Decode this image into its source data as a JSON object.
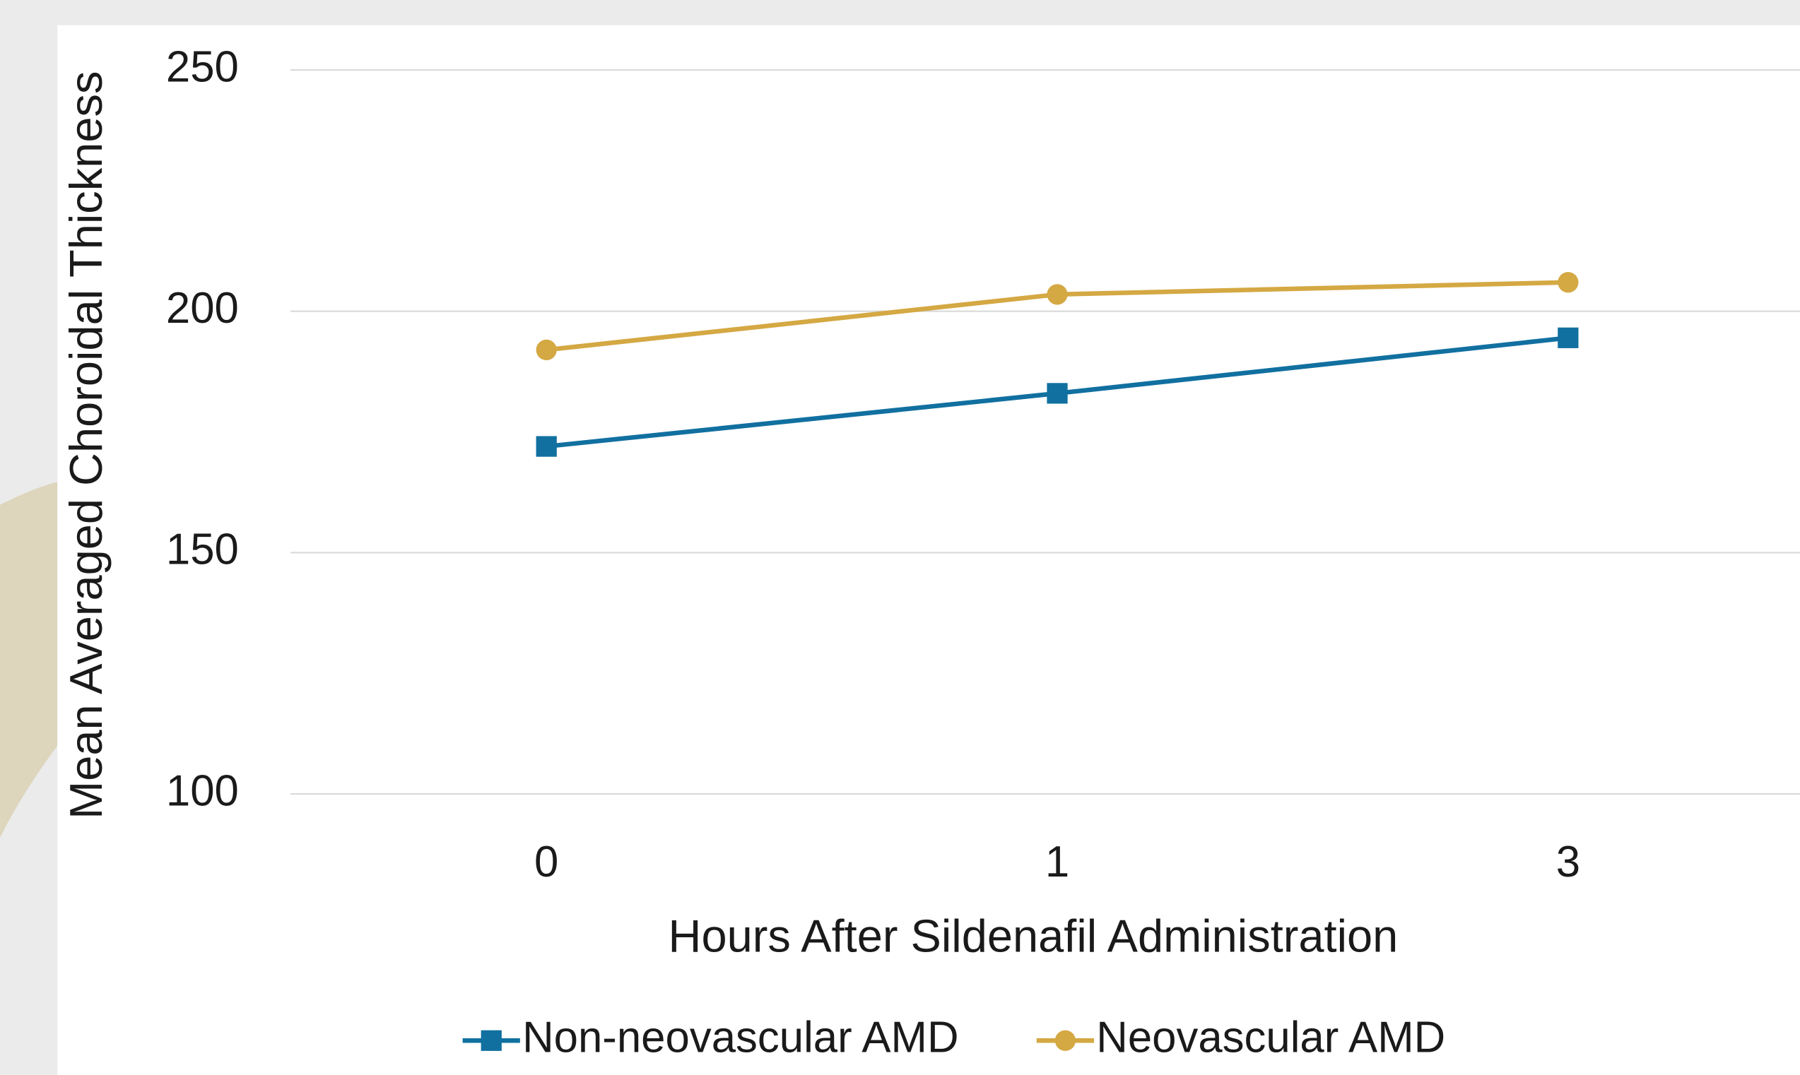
{
  "chart_data": {
    "type": "line",
    "x_label": "Hours After Sildenafil Administration",
    "y_label": "Mean Averaged Choroidal Thickness",
    "categories": [
      "0",
      "1",
      "3"
    ],
    "series": [
      {
        "name": "Non-neovascular AMD",
        "color": "#1170a0",
        "marker": "square",
        "values": [
          172,
          183,
          194.5
        ]
      },
      {
        "name": "Neovascular AMD",
        "color": "#d4a843",
        "marker": "circle",
        "values": [
          192,
          203.5,
          206
        ]
      }
    ],
    "ylim": [
      100,
      250
    ],
    "yticks": [
      100,
      150,
      200,
      250
    ],
    "grid": true,
    "legend": "bottom"
  }
}
